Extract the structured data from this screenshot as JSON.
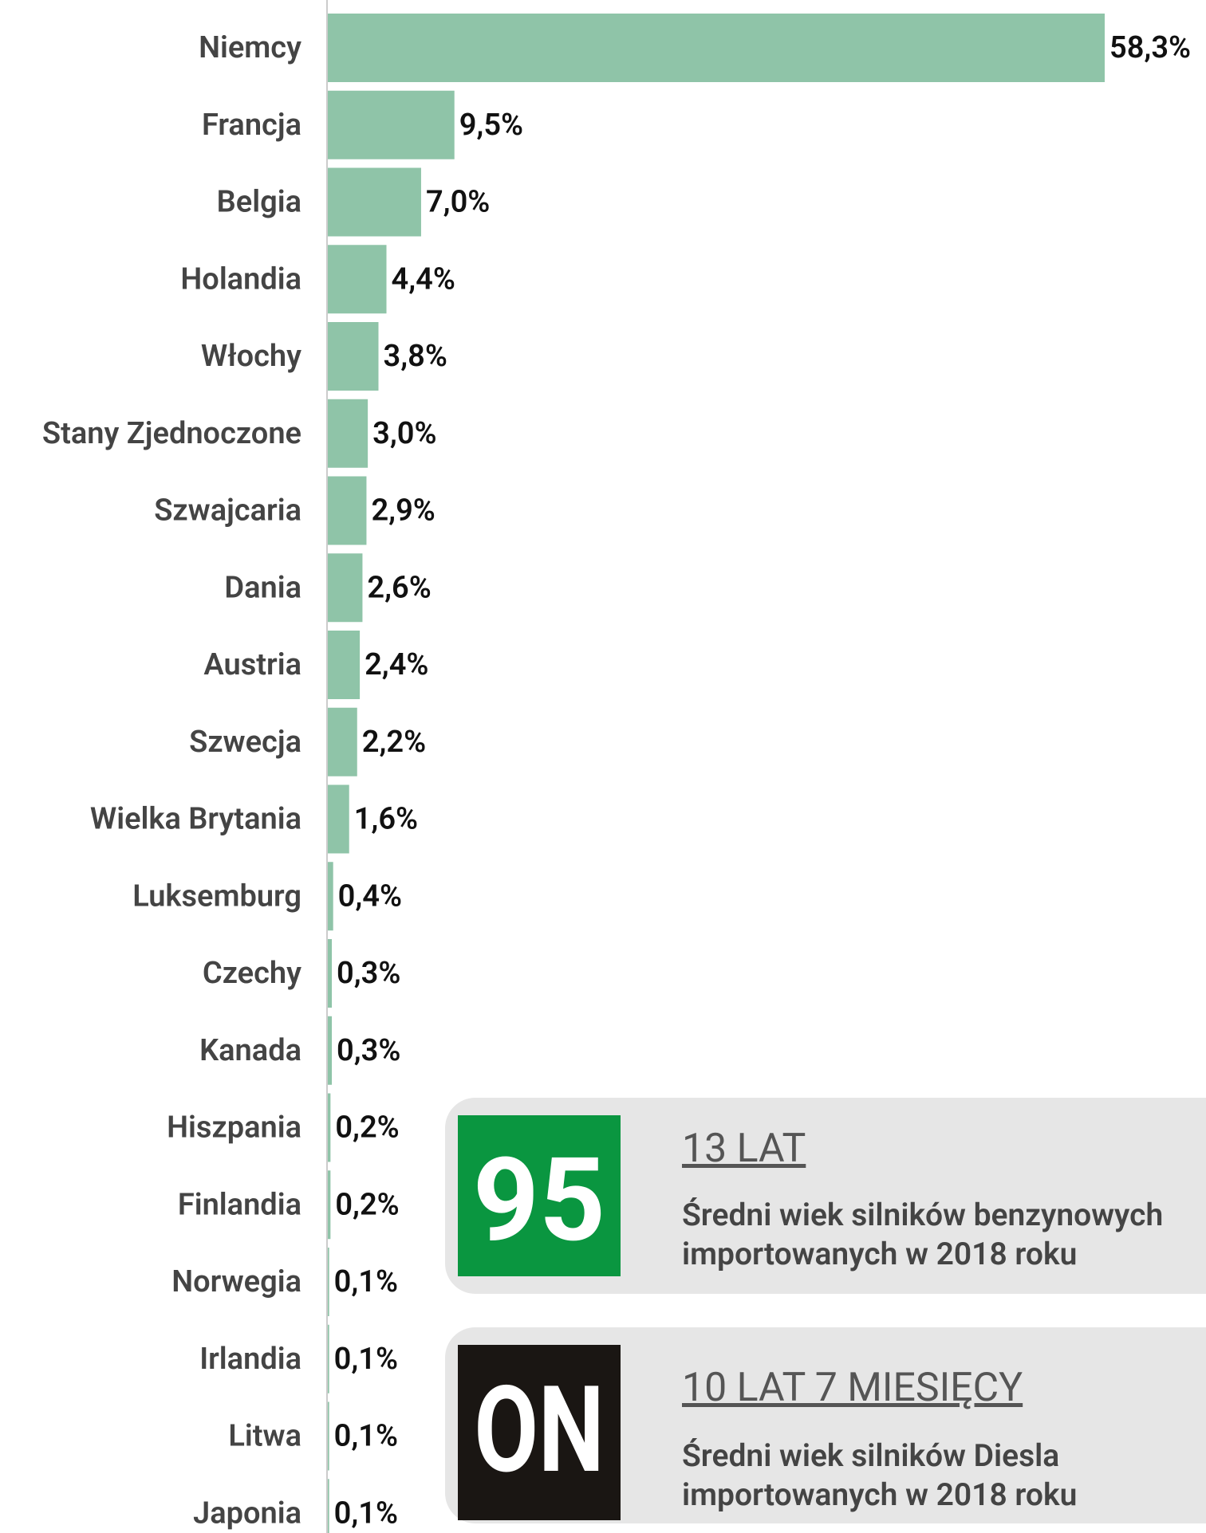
{
  "chart_data": {
    "type": "bar",
    "categories": [
      "Niemcy",
      "Francja",
      "Belgia",
      "Holandia",
      "Włochy",
      "Stany Zjednoczone",
      "Szwajcaria",
      "Dania",
      "Austria",
      "Szwecja",
      "Wielka Brytania",
      "Luksemburg",
      "Czechy",
      "Kanada",
      "Hiszpania",
      "Finlandia",
      "Norwegia",
      "Irlandia",
      "Litwa",
      "Japonia"
    ],
    "values": [
      58.3,
      9.5,
      7.0,
      4.4,
      3.8,
      3.0,
      2.9,
      2.6,
      2.4,
      2.2,
      1.6,
      0.4,
      0.3,
      0.3,
      0.2,
      0.2,
      0.1,
      0.1,
      0.1,
      0.1
    ],
    "value_labels": [
      "58,3%",
      "9,5%",
      "7,0%",
      "4,4%",
      "3,8%",
      "3,0%",
      "2,9%",
      "2,6%",
      "2,4%",
      "2,2%",
      "1,6%",
      "0,4%",
      "0,3%",
      "0,3%",
      "0,2%",
      "0,2%",
      "0,1%",
      "0,1%",
      "0,1%",
      "0,1%"
    ],
    "color": "#8fc4a8"
  },
  "cards": [
    {
      "badge": "95",
      "badge_color": "#0a9640",
      "title": "13 LAT",
      "lines": [
        "Średni wiek silników benzynowych",
        "importowanych w 2018 roku"
      ]
    },
    {
      "badge": "ON",
      "badge_color": "#1a1613",
      "title": "10 LAT 7 MIESIĘCY",
      "lines": [
        "Średni wiek silników Diesla",
        "importowanych w 2018 roku"
      ]
    }
  ]
}
